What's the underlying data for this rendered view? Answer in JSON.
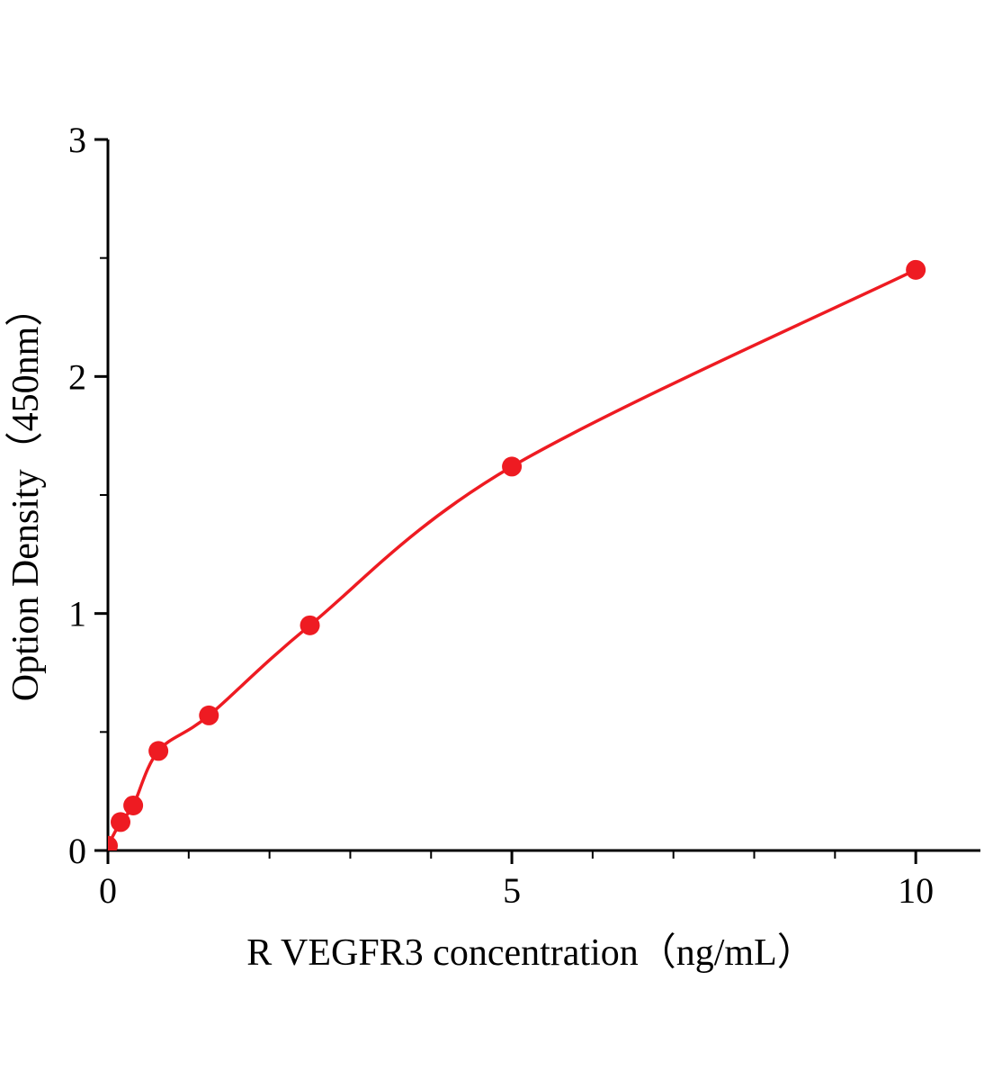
{
  "chart_data": {
    "type": "scatter",
    "title": "",
    "xlabel": "R VEGFR3 concentration（ng/mL）",
    "ylabel": "Option Density（450nm）",
    "x": [
      0,
      0.156,
      0.313,
      0.625,
      1.25,
      2.5,
      5,
      10
    ],
    "y": [
      0.02,
      0.12,
      0.19,
      0.42,
      0.57,
      0.95,
      1.62,
      2.45
    ],
    "xlim": [
      0,
      10.8
    ],
    "ylim": [
      0,
      3
    ],
    "x_major_ticks": [
      0,
      5,
      10
    ],
    "x_minor_ticks": [
      1,
      2,
      3,
      4,
      6,
      7,
      8,
      9
    ],
    "y_major_ticks": [
      0,
      1,
      2,
      3
    ],
    "y_minor_ticks": [
      0.5,
      1.5,
      2.5
    ],
    "grid": false,
    "legend": null,
    "curve_style": "smooth-fit-through-points",
    "colors": {
      "point": "#ee1b22",
      "line": "#ee1b22",
      "axis": "#000000",
      "background": "#ffffff"
    }
  }
}
